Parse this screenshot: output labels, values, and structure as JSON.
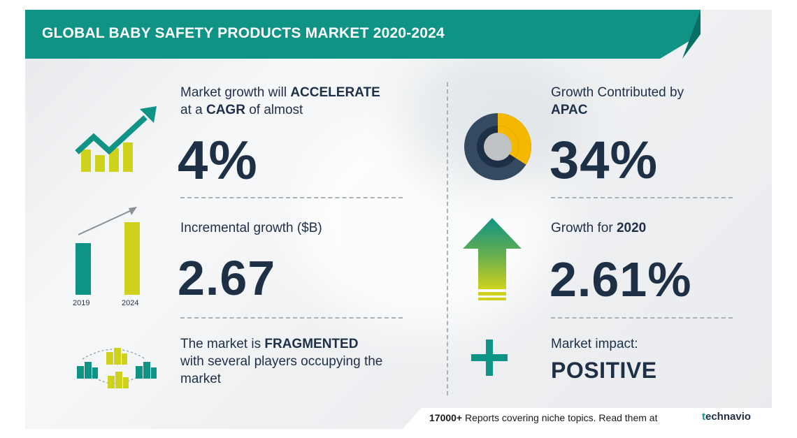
{
  "title": "GLOBAL BABY SAFETY PRODUCTS MARKET 2020-2024",
  "left": {
    "growth": {
      "pre": "Market growth will",
      "emph": "ACCELERATE",
      "line2_pre": "at a",
      "line2_emph": "CAGR",
      "line2_post": "of almost",
      "value": "4%"
    },
    "incremental": {
      "label": "Incremental growth ($B)",
      "value": "2.67",
      "bars": [
        {
          "year": "2019",
          "level": 0.74
        },
        {
          "year": "2024",
          "level": 1.0
        }
      ]
    },
    "market": {
      "pre": "The market is",
      "emph": "FRAGMENTED",
      "line2": "with several players occupying the",
      "line3": "market"
    }
  },
  "right": {
    "apac": {
      "label": "Growth Contributed by",
      "emph": "APAC",
      "value": "34%",
      "share": 0.34
    },
    "growth2020": {
      "pre": "Growth for",
      "emph": "2020",
      "value": "2.61%"
    },
    "impact": {
      "label": "Market impact:",
      "value": "POSITIVE"
    }
  },
  "footer": {
    "count": "17000+",
    "text": "Reports covering niche topics. Read them at",
    "brand_t": "t",
    "brand": "echnavio"
  },
  "colors": {
    "teal": "#0f9385",
    "navy": "#1d3046",
    "yellow": "#cfd21c",
    "gold": "#f4b800",
    "gray": "#aab2b8"
  }
}
